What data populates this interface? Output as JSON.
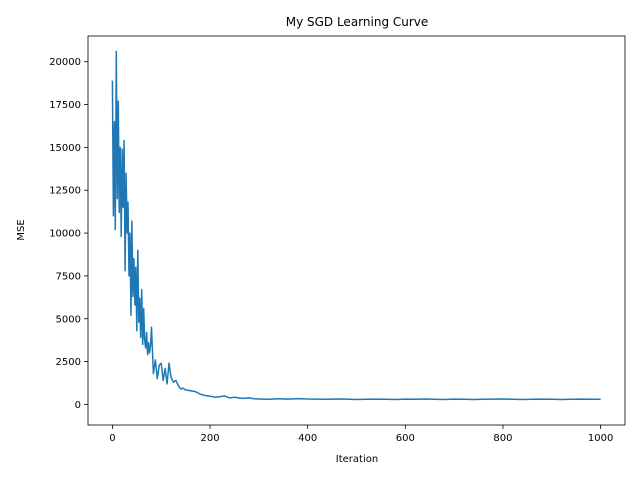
{
  "chart_data": {
    "type": "line",
    "title": "My SGD Learning Curve",
    "xlabel": "Iteration",
    "ylabel": "MSE",
    "xlim": [
      -50,
      1050
    ],
    "ylim": [
      -1200,
      21500
    ],
    "x_ticks": [
      0,
      200,
      400,
      600,
      800,
      1000
    ],
    "y_ticks": [
      0,
      2500,
      5000,
      7500,
      10000,
      12500,
      15000,
      17500,
      20000
    ],
    "x_tick_labels": [
      "0",
      "200",
      "400",
      "600",
      "800",
      "1000"
    ],
    "y_tick_labels": [
      "0",
      "2500",
      "5000",
      "7500",
      "10000",
      "12500",
      "15000",
      "17500",
      "20000"
    ],
    "grid": false,
    "legend": "none",
    "series": [
      {
        "color": "#1f77b4",
        "x": [
          0,
          2,
          4,
          6,
          8,
          10,
          12,
          14,
          16,
          18,
          20,
          22,
          24,
          26,
          28,
          30,
          32,
          34,
          36,
          38,
          40,
          42,
          44,
          46,
          48,
          50,
          52,
          54,
          56,
          58,
          60,
          62,
          64,
          66,
          68,
          70,
          72,
          74,
          76,
          78,
          80,
          84,
          88,
          92,
          96,
          100,
          104,
          108,
          112,
          116,
          120,
          125,
          130,
          135,
          140,
          145,
          150,
          160,
          170,
          180,
          190,
          200,
          210,
          220,
          230,
          240,
          250,
          260,
          270,
          280,
          290,
          300,
          320,
          340,
          360,
          380,
          400,
          420,
          440,
          460,
          480,
          500,
          520,
          540,
          560,
          580,
          600,
          620,
          640,
          660,
          680,
          700,
          720,
          740,
          760,
          780,
          800,
          820,
          840,
          860,
          880,
          900,
          920,
          940,
          960,
          980,
          1000
        ],
        "values": [
          18900,
          11000,
          16500,
          10200,
          20600,
          12000,
          17700,
          11200,
          15000,
          9800,
          14900,
          11500,
          15400,
          7800,
          13500,
          10000,
          11800,
          7500,
          10000,
          5200,
          10700,
          6300,
          8500,
          5800,
          8000,
          4300,
          9000,
          4800,
          6200,
          3900,
          6700,
          3500,
          5600,
          3800,
          3300,
          4200,
          2900,
          3600,
          3000,
          3400,
          4500,
          1800,
          2600,
          1500,
          2300,
          2400,
          1400,
          2100,
          1200,
          2400,
          1600,
          1300,
          1400,
          1100,
          900,
          950,
          850,
          800,
          750,
          600,
          520,
          480,
          420,
          450,
          500,
          380,
          420,
          370,
          350,
          380,
          330,
          320,
          300,
          330,
          310,
          340,
          320,
          310,
          300,
          320,
          310,
          290,
          300,
          310,
          300,
          290,
          310,
          300,
          320,
          300,
          290,
          310,
          300,
          290,
          300,
          310,
          320,
          300,
          290,
          300,
          310,
          300,
          290,
          300,
          310,
          300,
          300
        ]
      }
    ]
  }
}
